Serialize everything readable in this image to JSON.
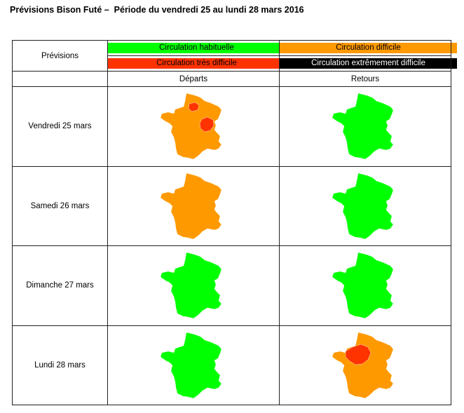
{
  "header": {
    "title": "Prévisions Bison Futé –  Période du vendredi 25 au lundi 28 mars 2016"
  },
  "table": {
    "corner_label": "Prévisions",
    "legend": [
      {
        "label": "Circulation habituelle",
        "color": "#00ff00"
      },
      {
        "label": "Circulation difficile",
        "color": "#ff9900"
      },
      {
        "label": "Circulation très difficile",
        "color": "#ff3300"
      },
      {
        "label": "Circulation extrêmement difficile",
        "color": "#000000"
      }
    ],
    "col_departs": "Départs",
    "col_retours": "Retours",
    "rows": [
      {
        "day": "Vendredi 25 mars",
        "departs": {
          "base": "#ff9900",
          "hotspots": [
            "paris",
            "lyon"
          ]
        },
        "retours": {
          "base": "#00ff00",
          "hotspots": []
        }
      },
      {
        "day": "Samedi 26 mars",
        "departs": {
          "base": "#ff9900",
          "hotspots": []
        },
        "retours": {
          "base": "#00ff00",
          "hotspots": []
        }
      },
      {
        "day": "Dimanche 27 mars",
        "departs": {
          "base": "#00ff00",
          "hotspots": []
        },
        "retours": {
          "base": "#00ff00",
          "hotspots": []
        }
      },
      {
        "day": "Lundi 28 mars",
        "departs": {
          "base": "#00ff00",
          "hotspots": []
        },
        "retours": {
          "base": "#ff9900",
          "hotspots": [
            "centre"
          ]
        }
      }
    ]
  }
}
